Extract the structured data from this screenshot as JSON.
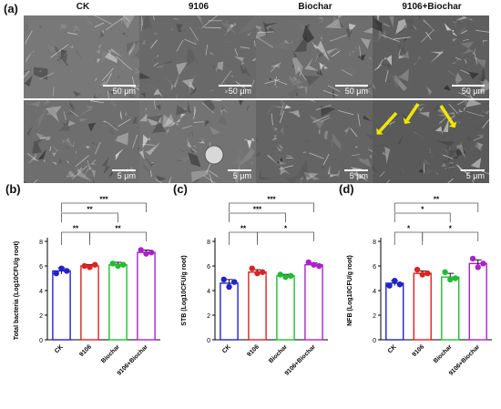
{
  "figure": {
    "panel_a_label": "(a)",
    "columns": [
      "CK",
      "9106",
      "Biochar",
      "9106+Biochar"
    ],
    "scale_top": "50 μm",
    "scale_bottom": "5 μm",
    "arrow_color": "#f2e600"
  },
  "colors": {
    "CK": "#2222cc",
    "9106": "#dd2222",
    "Biochar": "#22bb33",
    "9106+Biochar": "#aa22cc"
  },
  "chart_data": [
    {
      "panel": "(b)",
      "type": "bar",
      "categories": [
        "CK",
        "9106",
        "Biochar",
        "9106+Biochar"
      ],
      "values": [
        5.6,
        6.0,
        6.1,
        7.1
      ],
      "errors": [
        0.25,
        0.12,
        0.2,
        0.2
      ],
      "points": [
        [
          5.4,
          5.8,
          5.6
        ],
        [
          6.0,
          5.9,
          6.1
        ],
        [
          6.2,
          6.0,
          6.1
        ],
        [
          7.3,
          7.0,
          7.1
        ]
      ],
      "ylabel": "Total bacteria (Log10CFU/g root)",
      "ylim": [
        0,
        8
      ],
      "yticks": [
        0,
        2,
        4,
        6,
        8
      ],
      "significance": [
        {
          "a": 0,
          "b": 3,
          "label": "***"
        },
        {
          "a": 0,
          "b": 2,
          "label": "**"
        },
        {
          "a": 0,
          "b": 1,
          "label": "**"
        },
        {
          "a": 1,
          "b": 3,
          "label": "**"
        }
      ]
    },
    {
      "panel": "(c)",
      "type": "bar",
      "categories": [
        "CK",
        "9106",
        "Biochar",
        "9106+Biochar"
      ],
      "values": [
        4.6,
        5.5,
        5.2,
        6.1
      ],
      "errors": [
        0.3,
        0.2,
        0.12,
        0.15
      ],
      "points": [
        [
          4.9,
          4.3,
          4.7
        ],
        [
          5.8,
          5.4,
          5.5
        ],
        [
          5.3,
          5.1,
          5.2
        ],
        [
          6.3,
          6.1,
          6.0
        ]
      ],
      "ylabel": "STB (Log10CFU/g root)",
      "ylim": [
        0,
        8
      ],
      "yticks": [
        0,
        2,
        4,
        6,
        8
      ],
      "significance": [
        {
          "a": 0,
          "b": 3,
          "label": "***"
        },
        {
          "a": 0,
          "b": 2,
          "label": "***"
        },
        {
          "a": 0,
          "b": 1,
          "label": "**"
        },
        {
          "a": 1,
          "b": 3,
          "label": "*"
        }
      ]
    },
    {
      "panel": "(d)",
      "type": "bar",
      "categories": [
        "CK",
        "9106",
        "Biochar",
        "9106+Biochar"
      ],
      "values": [
        4.6,
        5.4,
        5.1,
        6.2
      ],
      "errors": [
        0.2,
        0.2,
        0.3,
        0.3
      ],
      "points": [
        [
          4.4,
          4.8,
          4.5
        ],
        [
          5.7,
          5.3,
          5.4
        ],
        [
          5.5,
          4.9,
          5.0
        ],
        [
          6.6,
          5.9,
          6.2
        ]
      ],
      "ylabel": "NFB (Log10CFU/g root)",
      "ylim": [
        0,
        8
      ],
      "yticks": [
        0,
        2,
        4,
        6,
        8
      ],
      "significance": [
        {
          "a": 0,
          "b": 3,
          "label": "**"
        },
        {
          "a": 0,
          "b": 2,
          "label": "*"
        },
        {
          "a": 0,
          "b": 1,
          "label": "*"
        },
        {
          "a": 1,
          "b": 3,
          "label": "*"
        }
      ]
    }
  ]
}
